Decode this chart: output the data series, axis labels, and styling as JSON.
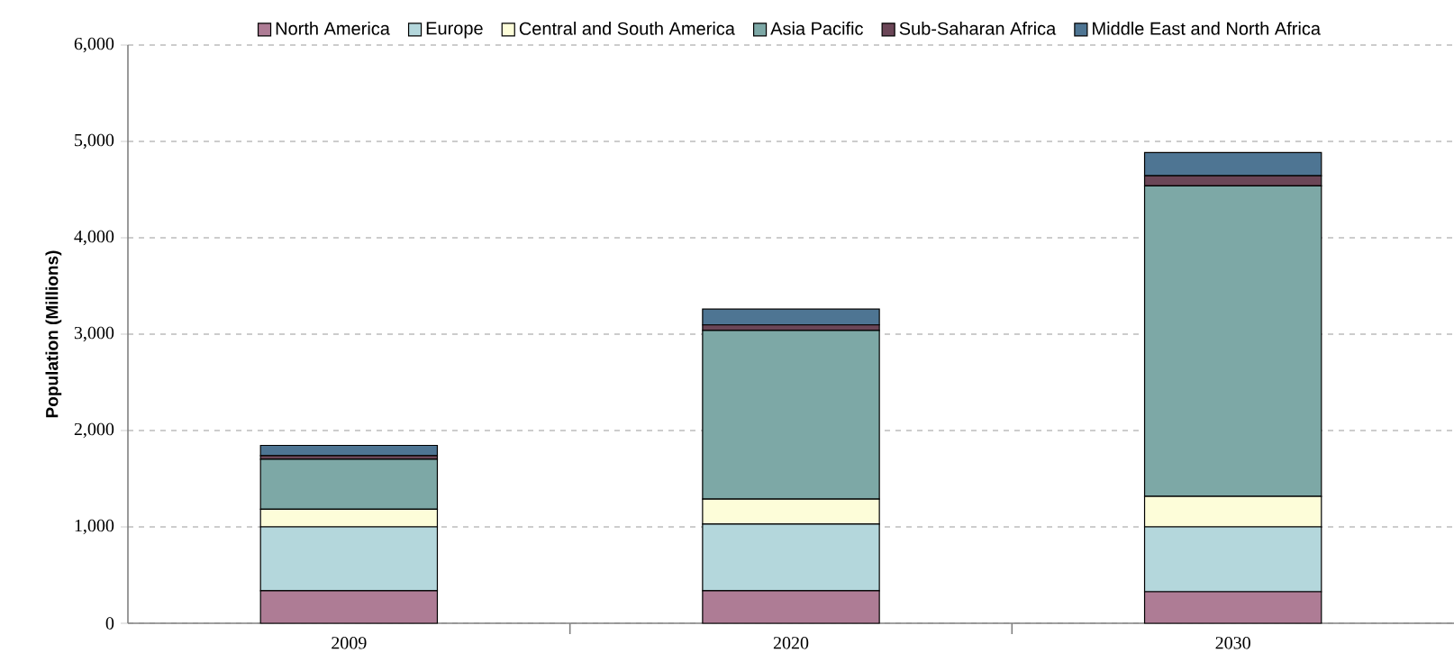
{
  "chart_data": {
    "type": "bar",
    "stacked": true,
    "ylabel": "Population (Millions)",
    "categories": [
      "2009",
      "2020",
      "2030"
    ],
    "series": [
      {
        "name": "North America",
        "color": "#ae7c95",
        "values": [
          337,
          337,
          327
        ]
      },
      {
        "name": "Europe",
        "color": "#b4d7dc",
        "values": [
          663,
          692,
          673
        ]
      },
      {
        "name": "Central and South America",
        "color": "#fdfdd9",
        "values": [
          183,
          259,
          317
        ]
      },
      {
        "name": "Asia Pacific",
        "color": "#7da8a6",
        "values": [
          519,
          1750,
          3221
        ]
      },
      {
        "name": "Sub-Saharan Africa",
        "color": "#6b4657",
        "values": [
          38,
          58,
          106
        ]
      },
      {
        "name": "Middle East and North Africa",
        "color": "#4e7593",
        "values": [
          106,
          164,
          241
        ]
      }
    ],
    "ylim": [
      0,
      6000
    ],
    "yticks": [
      0,
      {
        "value": 1000,
        "label": "1,000"
      },
      {
        "value": 2000,
        "label": "2,000"
      },
      {
        "value": 3000,
        "label": "3,000"
      },
      {
        "value": 4000,
        "label": "4,000"
      },
      {
        "value": 5000,
        "label": "5,000"
      },
      {
        "value": 6000,
        "label": "6,000"
      }
    ],
    "grid": "y",
    "legend": "top"
  }
}
